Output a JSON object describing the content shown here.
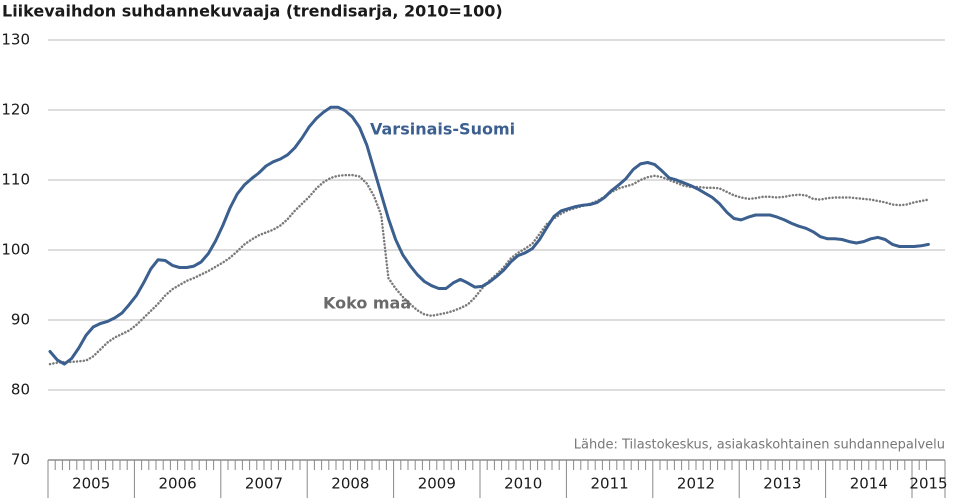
{
  "chart_data": {
    "type": "line",
    "title": "Liikevaihdon suhdannekuvaaja (trendisarja, 2010=100)",
    "source": "Lähde: Tilastokeskus, asiakaskohtainen suhdannepalvelu",
    "categories": [
      "2005",
      null,
      null,
      null,
      null,
      null,
      null,
      null,
      null,
      null,
      null,
      null,
      "2006",
      null,
      null,
      null,
      null,
      null,
      null,
      null,
      null,
      null,
      null,
      null,
      "2007",
      null,
      null,
      null,
      null,
      null,
      null,
      null,
      null,
      null,
      null,
      null,
      "2008",
      null,
      null,
      null,
      null,
      null,
      null,
      null,
      null,
      null,
      null,
      null,
      "2009",
      null,
      null,
      null,
      null,
      null,
      null,
      null,
      null,
      null,
      null,
      null,
      "2010",
      null,
      null,
      null,
      null,
      null,
      null,
      null,
      null,
      null,
      null,
      null,
      "2011",
      null,
      null,
      null,
      null,
      null,
      null,
      null,
      null,
      null,
      null,
      null,
      "2012",
      null,
      null,
      null,
      null,
      null,
      null,
      null,
      null,
      null,
      null,
      null,
      "2013",
      null,
      null,
      null,
      null,
      null,
      null,
      null,
      null,
      null,
      null,
      null,
      "2014",
      null,
      null,
      null,
      null,
      null,
      null,
      null,
      null,
      null,
      null,
      null,
      "2015",
      null,
      null
    ],
    "series": [
      {
        "name": "Varsinais-Suomi",
        "color": "#3b5f8e",
        "style": "solid",
        "values": [
          85.5,
          84.3,
          83.7,
          84.5,
          86,
          87.8,
          89,
          89.5,
          89.8,
          90.3,
          91,
          92.2,
          93.5,
          95.3,
          97.3,
          98.6,
          98.5,
          97.8,
          97.5,
          97.5,
          97.7,
          98.3,
          99.5,
          101.3,
          103.5,
          106,
          108,
          109.3,
          110.2,
          111,
          112,
          112.6,
          113,
          113.6,
          114.6,
          116,
          117.6,
          118.8,
          119.7,
          120.4,
          120.4,
          119.9,
          119,
          117.5,
          115,
          111.5,
          108,
          104.5,
          101.5,
          99.3,
          97.8,
          96.5,
          95.5,
          94.9,
          94.5,
          94.5,
          95.3,
          95.8,
          95.3,
          94.7,
          94.8,
          95.4,
          96.2,
          97.1,
          98.3,
          99.2,
          99.6,
          100.2,
          101.5,
          103.2,
          104.8,
          105.6,
          105.9,
          106.2,
          106.4,
          106.5,
          106.8,
          107.5,
          108.5,
          109.3,
          110.2,
          111.5,
          112.3,
          112.5,
          112.2,
          111.3,
          110.3,
          110,
          109.6,
          109.2,
          108.7,
          108.1,
          107.5,
          106.6,
          105.4,
          104.5,
          104.3,
          104.7,
          105,
          105,
          105,
          104.7,
          104.3,
          103.8,
          103.4,
          103.1,
          102.6,
          101.9,
          101.6,
          101.6,
          101.5,
          101.2,
          101,
          101.2,
          101.6,
          101.8,
          101.5,
          100.8,
          100.5,
          100.5,
          100.5,
          100.6,
          100.8
        ]
      },
      {
        "name": "Koko maa",
        "color": "#7a7a7a",
        "style": "dotted",
        "values": [
          83.7,
          83.9,
          84,
          84,
          84.1,
          84.2,
          84.8,
          85.8,
          86.8,
          87.5,
          88,
          88.5,
          89.3,
          90.3,
          91.3,
          92.3,
          93.5,
          94.4,
          95,
          95.6,
          96,
          96.5,
          97,
          97.6,
          98.2,
          98.9,
          99.8,
          100.8,
          101.5,
          102.1,
          102.5,
          102.9,
          103.5,
          104.4,
          105.6,
          106.6,
          107.6,
          108.8,
          109.7,
          110.3,
          110.6,
          110.7,
          110.7,
          110.5,
          109.5,
          107.7,
          105,
          96,
          94.5,
          93.3,
          92.3,
          91.4,
          90.8,
          90.6,
          90.8,
          91,
          91.3,
          91.7,
          92.2,
          93.2,
          94.5,
          95.6,
          96.5,
          97.5,
          98.8,
          99.6,
          100.2,
          100.9,
          102.3,
          103.7,
          104.5,
          105.2,
          105.7,
          106,
          106.3,
          106.6,
          107,
          107.6,
          108.3,
          108.8,
          109.1,
          109.4,
          110,
          110.4,
          110.6,
          110.4,
          110,
          109.6,
          109.2,
          109,
          109,
          108.9,
          108.9,
          108.8,
          108.3,
          107.8,
          107.5,
          107.3,
          107.4,
          107.6,
          107.6,
          107.5,
          107.6,
          107.8,
          107.9,
          107.8,
          107.3,
          107.2,
          107.4,
          107.5,
          107.5,
          107.5,
          107.4,
          107.3,
          107.2,
          107,
          106.8,
          106.5,
          106.4,
          106.5,
          106.8,
          107,
          107.2
        ]
      }
    ],
    "ylim": [
      70,
      130
    ],
    "yticks": [
      70,
      80,
      90,
      100,
      110,
      120,
      130
    ],
    "grid": true
  }
}
